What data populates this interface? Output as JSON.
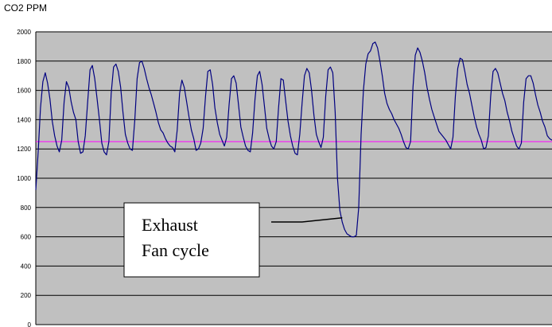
{
  "chart_data": {
    "type": "line",
    "title": "",
    "ylabel": "CO2 PPM",
    "xlabel": "",
    "ylim": [
      0,
      2000
    ],
    "y_ticks": [
      0,
      200,
      400,
      600,
      800,
      1000,
      1200,
      1400,
      1600,
      1800,
      2000
    ],
    "grid": "horizontal",
    "legend": "none",
    "x_ticks_labeled": false,
    "colors": {
      "plot_background": "#c0c0c0",
      "series": "#000080",
      "reference": "#ff00ff",
      "gridline": "#000000"
    },
    "series": [
      {
        "values": [
          920,
          1180,
          1480,
          1660,
          1720,
          1650,
          1540,
          1390,
          1290,
          1220,
          1180,
          1260,
          1520,
          1660,
          1620,
          1520,
          1450,
          1400,
          1250,
          1170,
          1180,
          1290,
          1520,
          1740,
          1770,
          1680,
          1540,
          1400,
          1240,
          1180,
          1160,
          1250,
          1580,
          1760,
          1780,
          1730,
          1620,
          1450,
          1300,
          1240,
          1200,
          1190,
          1400,
          1680,
          1790,
          1800,
          1750,
          1680,
          1620,
          1570,
          1510,
          1450,
          1380,
          1330,
          1310,
          1270,
          1240,
          1220,
          1210,
          1180,
          1330,
          1580,
          1670,
          1620,
          1520,
          1420,
          1330,
          1270,
          1190,
          1200,
          1240,
          1340,
          1560,
          1730,
          1740,
          1640,
          1480,
          1380,
          1300,
          1260,
          1220,
          1280,
          1500,
          1680,
          1700,
          1650,
          1500,
          1350,
          1280,
          1220,
          1190,
          1180,
          1310,
          1540,
          1700,
          1730,
          1640,
          1490,
          1340,
          1270,
          1220,
          1200,
          1250,
          1480,
          1680,
          1670,
          1530,
          1390,
          1290,
          1220,
          1170,
          1160,
          1300,
          1520,
          1700,
          1750,
          1720,
          1600,
          1430,
          1300,
          1250,
          1210,
          1280,
          1560,
          1740,
          1760,
          1720,
          1450,
          1000,
          780,
          700,
          650,
          620,
          610,
          600,
          600,
          610,
          800,
          1300,
          1600,
          1780,
          1850,
          1870,
          1920,
          1930,
          1890,
          1800,
          1700,
          1580,
          1510,
          1470,
          1440,
          1400,
          1370,
          1340,
          1300,
          1250,
          1210,
          1200,
          1250,
          1620,
          1840,
          1890,
          1860,
          1800,
          1720,
          1620,
          1540,
          1470,
          1420,
          1370,
          1320,
          1300,
          1280,
          1260,
          1230,
          1200,
          1280,
          1560,
          1750,
          1820,
          1810,
          1730,
          1640,
          1580,
          1500,
          1420,
          1350,
          1300,
          1260,
          1200,
          1210,
          1290,
          1560,
          1730,
          1750,
          1720,
          1650,
          1580,
          1530,
          1450,
          1390,
          1320,
          1270,
          1220,
          1200,
          1240,
          1520,
          1680,
          1700,
          1700,
          1650,
          1570,
          1500,
          1450,
          1390,
          1350,
          1290,
          1270,
          1260
        ]
      },
      {
        "values": [
          1250,
          1250
        ]
      }
    ],
    "annotations": [
      {
        "lines": [
          "Exhaust",
          "Fan cycle"
        ],
        "points_to_y": 730
      }
    ]
  }
}
